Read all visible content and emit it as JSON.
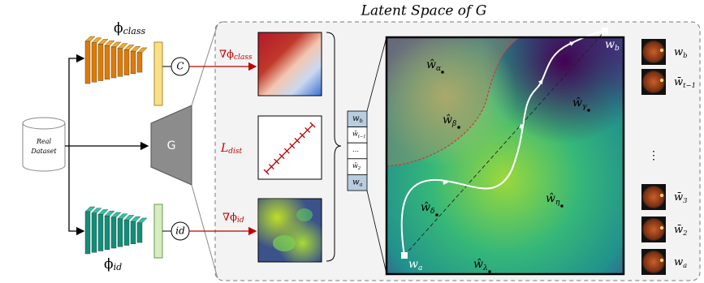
{
  "title": "Latent Space of G",
  "dataset": {
    "line1": "Real",
    "line2": "Dataset"
  },
  "generator": "G",
  "class_encoder": {
    "base": "ϕ",
    "sub": "class",
    "node": "C"
  },
  "id_encoder": {
    "base": "ϕ",
    "sub": "id",
    "node": "id"
  },
  "losses": [
    {
      "base": "∇ϕ",
      "sub": "class"
    },
    {
      "base": "L",
      "sub": "dist"
    },
    {
      "base": "∇ϕ",
      "sub": "id"
    }
  ],
  "stack": [
    {
      "base": "w",
      "sub": "b"
    },
    {
      "base": "w̄",
      "sub": "t−1"
    },
    {
      "base": "…",
      "sub": ""
    },
    {
      "base": "w̄",
      "sub": "2"
    },
    {
      "base": "w",
      "sub": "a"
    }
  ],
  "points": [
    {
      "base": "ŵ",
      "sub": "α"
    },
    {
      "base": "ŵ",
      "sub": "β"
    },
    {
      "base": "ŵ",
      "sub": "γ"
    },
    {
      "base": "ŵ",
      "sub": "δ"
    },
    {
      "base": "ŵ",
      "sub": "η"
    },
    {
      "base": "ŵ",
      "sub": "λ"
    }
  ],
  "endpoints": [
    {
      "base": "w",
      "sub": "a"
    },
    {
      "base": "w",
      "sub": "b"
    }
  ],
  "samples": [
    {
      "base": "w",
      "sub": "b"
    },
    {
      "base": "w̄",
      "sub": "t−1"
    },
    {
      "base": "⋮",
      "sub": ""
    },
    {
      "base": "w̄",
      "sub": "3"
    },
    {
      "base": "w̄",
      "sub": "2"
    },
    {
      "base": "w",
      "sub": "a"
    }
  ]
}
